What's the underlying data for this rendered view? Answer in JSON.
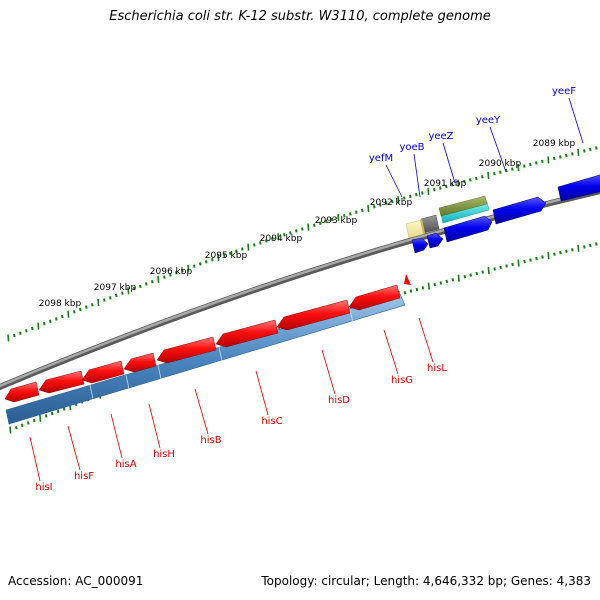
{
  "title": "Escherichia coli str. K-12 substr. W3110, complete genome",
  "footer": {
    "accession": "Accession: AC_000091",
    "summary": "Topology: circular; Length: 4,646,332 bp; Genes: 4,383"
  },
  "ticks": [
    {
      "label": "2089 kbp",
      "kbp": 2089
    },
    {
      "label": "2090 kbp",
      "kbp": 2090
    },
    {
      "label": "2091 kbp",
      "kbp": 2091
    },
    {
      "label": "2092 kbp",
      "kbp": 2092
    },
    {
      "label": "2093 kbp",
      "kbp": 2093
    },
    {
      "label": "2094 kbp",
      "kbp": 2094
    },
    {
      "label": "2095 kbp",
      "kbp": 2095
    },
    {
      "label": "2096 kbp",
      "kbp": 2096
    },
    {
      "label": "2097 kbp",
      "kbp": 2097
    },
    {
      "label": "2098 kbp",
      "kbp": 2098
    }
  ],
  "forward_genes": [
    {
      "name": "yeeF",
      "color": "#0000cc"
    },
    {
      "name": "yeeY",
      "color": "#0000cc"
    },
    {
      "name": "yeeZ",
      "color": "#0000cc"
    },
    {
      "name": "yoeB",
      "color": "#0000cc"
    },
    {
      "name": "yefM",
      "color": "#0000cc"
    }
  ],
  "reverse_genes": [
    {
      "name": "hisL",
      "color": "#cc0000"
    },
    {
      "name": "hisG",
      "color": "#cc0000"
    },
    {
      "name": "hisD",
      "color": "#cc0000"
    },
    {
      "name": "hisC",
      "color": "#cc0000"
    },
    {
      "name": "hisB",
      "color": "#cc0000"
    },
    {
      "name": "hisH",
      "color": "#cc0000"
    },
    {
      "name": "hisA",
      "color": "#cc0000"
    },
    {
      "name": "hisF",
      "color": "#cc0000"
    },
    {
      "name": "hisI",
      "color": "#cc0000"
    }
  ],
  "colors": {
    "backbone": "#808080",
    "tick_mark": "#1a7a1a",
    "gene_red": "#ff0000",
    "gene_blue": "#0000ee",
    "feature_steelblue": "#4a86c0",
    "label_red": "#cc0000",
    "label_blue": "#0000cc"
  }
}
